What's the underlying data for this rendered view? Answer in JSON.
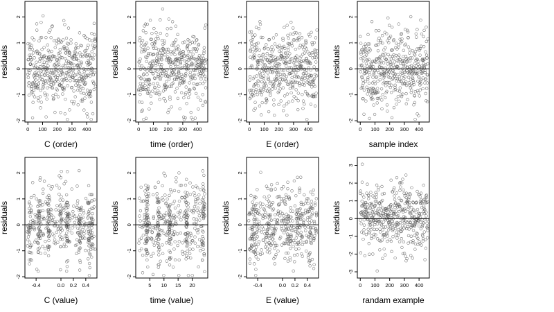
{
  "figure": {
    "point_color": "#555555",
    "axis_color": "#000000"
  },
  "chart_data": [
    {
      "type": "scatter",
      "xlabel": "C (order)",
      "ylabel": "residuals",
      "xlim": [
        -20,
        470
      ],
      "ylim": [
        -2.05,
        2.6
      ],
      "xticks": [
        0,
        100,
        200,
        300,
        400
      ],
      "xtick_labels": [
        "0",
        "100",
        "200",
        "300",
        "400"
      ],
      "yticks": [
        -2,
        -1,
        0,
        1,
        2
      ],
      "ytick_labels": [
        "-2",
        "-1",
        "0",
        "1",
        "2"
      ],
      "hline": 0,
      "pattern": {
        "kind": "uniform",
        "n": 460,
        "x_min": 0,
        "x_max": 460,
        "y_mean": 0,
        "y_sd": 0.75,
        "y_min": -1.95,
        "y_max": 2.45,
        "seed": 11
      }
    },
    {
      "type": "scatter",
      "xlabel": "time (order)",
      "ylabel": "residuals",
      "xlim": [
        -20,
        470
      ],
      "ylim": [
        -2.05,
        2.6
      ],
      "xticks": [
        0,
        100,
        200,
        300,
        400
      ],
      "xtick_labels": [
        "0",
        "100",
        "200",
        "300",
        "400"
      ],
      "yticks": [
        -2,
        -1,
        0,
        1,
        2
      ],
      "ytick_labels": [
        "-2",
        "-1",
        "0",
        "1",
        "2"
      ],
      "hline": 0,
      "pattern": {
        "kind": "uniform",
        "n": 460,
        "x_min": 0,
        "x_max": 460,
        "y_mean": 0,
        "y_sd": 0.75,
        "y_min": -1.95,
        "y_max": 2.45,
        "seed": 23
      }
    },
    {
      "type": "scatter",
      "xlabel": "E (order)",
      "ylabel": "residuals",
      "xlim": [
        -20,
        470
      ],
      "ylim": [
        -2.05,
        2.6
      ],
      "xticks": [
        0,
        100,
        200,
        300,
        400
      ],
      "xtick_labels": [
        "0",
        "100",
        "200",
        "300",
        "400"
      ],
      "yticks": [
        -2,
        -1,
        0,
        1,
        2
      ],
      "ytick_labels": [
        "-2",
        "-1",
        "0",
        "1",
        "2"
      ],
      "hline": 0,
      "pattern": {
        "kind": "uniform",
        "n": 460,
        "x_min": 0,
        "x_max": 460,
        "y_mean": 0,
        "y_sd": 0.75,
        "y_min": -1.95,
        "y_max": 2.45,
        "seed": 37
      }
    },
    {
      "type": "scatter",
      "xlabel": "sample index",
      "ylabel": "residuals",
      "xlim": [
        -20,
        470
      ],
      "ylim": [
        -2.05,
        2.6
      ],
      "xticks": [
        0,
        100,
        200,
        300,
        400
      ],
      "xtick_labels": [
        "0",
        "100",
        "200",
        "300",
        "400"
      ],
      "yticks": [
        -2,
        -1,
        0,
        1,
        2
      ],
      "ytick_labels": [
        "-2",
        "-1",
        "0",
        "1",
        "2"
      ],
      "hline": 0,
      "pattern": {
        "kind": "uniform",
        "n": 460,
        "x_min": 0,
        "x_max": 460,
        "y_mean": 0,
        "y_sd": 0.75,
        "y_min": -1.95,
        "y_max": 2.45,
        "seed": 41
      }
    },
    {
      "type": "scatter",
      "xlabel": "C (value)",
      "ylabel": "residuals",
      "xlim": [
        -0.58,
        0.58
      ],
      "ylim": [
        -2.05,
        2.6
      ],
      "xticks": [
        -0.4,
        0.0,
        0.2,
        0.4
      ],
      "xtick_labels": [
        "-0.4",
        "0.0",
        "0.2",
        "0.4"
      ],
      "yticks": [
        -2,
        -1,
        0,
        1,
        2
      ],
      "ytick_labels": [
        "-2",
        "-1",
        "0",
        "1",
        "2"
      ],
      "hline": 0,
      "pattern": {
        "kind": "clustered",
        "n": 460,
        "x_min": -0.55,
        "x_max": 0.55,
        "clusters": [
          -0.5,
          -0.35,
          -0.2,
          0.0,
          0.1,
          0.3,
          0.45,
          0.5
        ],
        "cluster_share": 0.55,
        "jitter": 0.012,
        "y_mean": 0,
        "y_sd": 0.75,
        "y_min": -1.95,
        "y_max": 2.45,
        "seed": 53
      }
    },
    {
      "type": "scatter",
      "xlabel": "time (value)",
      "ylabel": "residuals",
      "xlim": [
        0,
        25.5
      ],
      "ylim": [
        -2.05,
        2.6
      ],
      "xticks": [
        5,
        10,
        15,
        20
      ],
      "xtick_labels": [
        "5",
        "10",
        "15",
        "20"
      ],
      "yticks": [
        -2,
        -1,
        0,
        1,
        2
      ],
      "ytick_labels": [
        "-2",
        "-1",
        "0",
        "1",
        "2"
      ],
      "hline": 0,
      "pattern": {
        "kind": "clustered",
        "n": 460,
        "x_min": 1,
        "x_max": 24.5,
        "clusters": [
          4,
          8,
          12,
          18,
          24
        ],
        "cluster_share": 0.45,
        "jitter": 0.25,
        "y_mean": 0,
        "y_sd": 0.75,
        "y_min": -1.95,
        "y_max": 2.45,
        "seed": 67
      }
    },
    {
      "type": "scatter",
      "xlabel": "E (value)",
      "ylabel": "residuals",
      "xlim": [
        -0.58,
        0.58
      ],
      "ylim": [
        -2.05,
        2.6
      ],
      "xticks": [
        -0.4,
        0.0,
        0.2,
        0.4
      ],
      "xtick_labels": [
        "-0.4",
        "0.0",
        "0.2",
        "0.4"
      ],
      "yticks": [
        -2,
        -1,
        0,
        1,
        2
      ],
      "ytick_labels": [
        "-2",
        "-1",
        "0",
        "1",
        "2"
      ],
      "hline": 0,
      "pattern": {
        "kind": "clustered",
        "n": 460,
        "x_min": -0.55,
        "x_max": 0.55,
        "clusters": [
          -0.45,
          -0.2,
          0.1,
          0.25,
          0.45
        ],
        "cluster_share": 0.3,
        "jitter": 0.03,
        "y_mean": 0,
        "y_sd": 0.75,
        "y_min": -1.95,
        "y_max": 2.45,
        "seed": 79
      }
    },
    {
      "type": "scatter",
      "xlabel": "randam example",
      "ylabel": "residuals",
      "xlim": [
        -20,
        470
      ],
      "ylim": [
        -3.35,
        3.45
      ],
      "xticks": [
        0,
        100,
        200,
        300,
        400
      ],
      "xtick_labels": [
        "0",
        "100",
        "200",
        "300",
        "400"
      ],
      "yticks": [
        -3,
        -2,
        -1,
        0,
        1,
        2,
        3
      ],
      "ytick_labels": [
        "-3",
        "-2",
        "-1",
        "0",
        "1",
        "2",
        "3"
      ],
      "hline": 0,
      "pattern": {
        "kind": "uniform",
        "n": 460,
        "x_min": 0,
        "x_max": 460,
        "y_mean": 0,
        "y_sd": 1.0,
        "y_min": -3.2,
        "y_max": 3.2,
        "seed": 97
      }
    }
  ]
}
